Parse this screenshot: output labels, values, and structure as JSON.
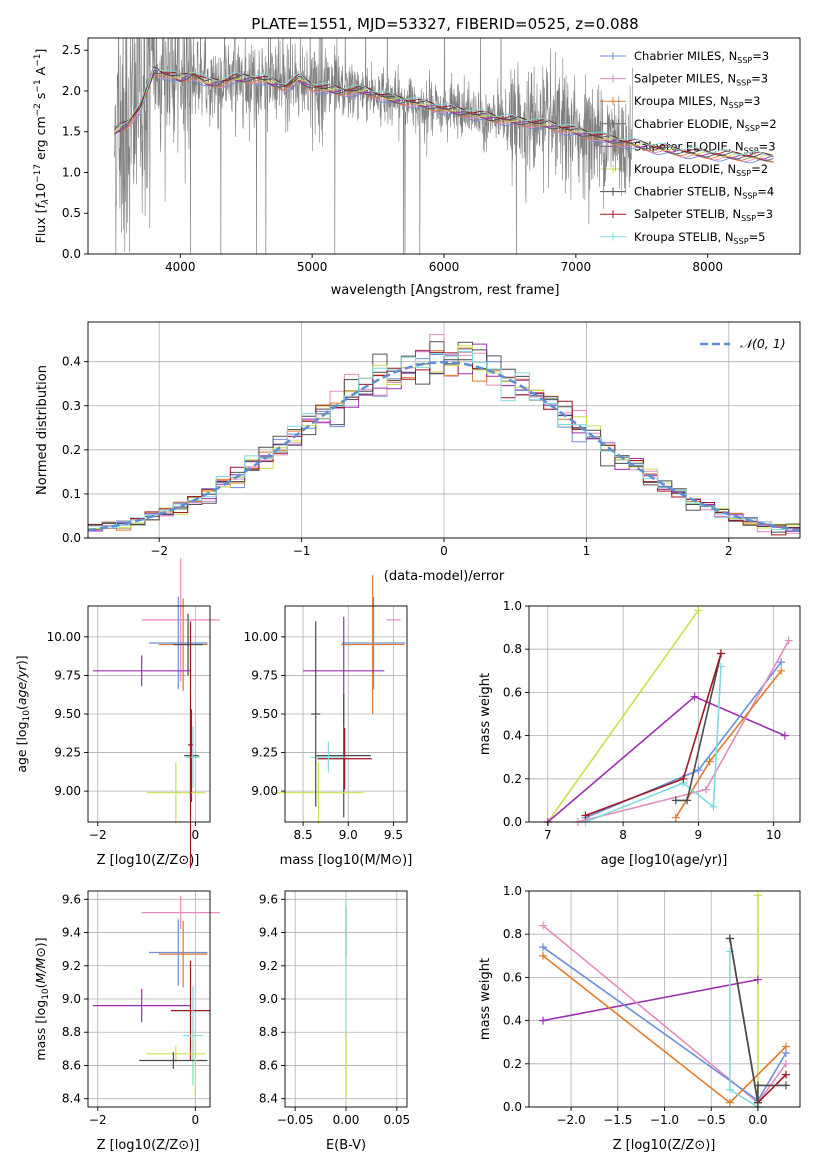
{
  "chart_data": [
    {
      "id": "spectrum",
      "type": "line",
      "title": "PLATE=1551, MJD=53327, FIBERID=0525, z=0.088",
      "xlabel": "wavelength [Angstrom, rest frame]",
      "ylabel": "Flux [f_λ 10^-17 erg cm^-2 s^-1 A^-1]",
      "xlim": [
        3300,
        8700
      ],
      "ylim": [
        0,
        2.65
      ],
      "xticks": [
        4000,
        5000,
        6000,
        7000,
        8000
      ],
      "yticks": [
        0.0,
        0.5,
        1.0,
        1.5,
        2.0,
        2.5
      ],
      "grid": false,
      "legend_position": "top-right",
      "data_range": [
        3500,
        7430
      ],
      "model_range": [
        3500,
        8500
      ],
      "continuum": [
        [
          3500,
          1.5
        ],
        [
          3600,
          1.6
        ],
        [
          3700,
          1.8
        ],
        [
          3800,
          2.25
        ],
        [
          3900,
          2.2
        ],
        [
          4000,
          2.15
        ],
        [
          4100,
          2.2
        ],
        [
          4200,
          2.1
        ],
        [
          4300,
          2.1
        ],
        [
          4400,
          2.15
        ],
        [
          4600,
          2.15
        ],
        [
          4800,
          2.05
        ],
        [
          4900,
          2.15
        ],
        [
          5000,
          2.05
        ],
        [
          5200,
          2.0
        ],
        [
          5400,
          2.0
        ],
        [
          5600,
          1.9
        ],
        [
          5800,
          1.85
        ],
        [
          6000,
          1.78
        ],
        [
          6200,
          1.72
        ],
        [
          6400,
          1.66
        ],
        [
          6600,
          1.62
        ],
        [
          6800,
          1.58
        ],
        [
          7000,
          1.5
        ],
        [
          7200,
          1.42
        ],
        [
          7400,
          1.36
        ],
        [
          7600,
          1.3
        ],
        [
          7800,
          1.25
        ],
        [
          8000,
          1.22
        ],
        [
          8200,
          1.2
        ],
        [
          8500,
          1.18
        ]
      ],
      "series": [
        {
          "name": "Chabrier MILES, N_SSP=3",
          "color": "#6a8fdb"
        },
        {
          "name": "Salpeter MILES, N_SSP=3",
          "color": "#e48bbf"
        },
        {
          "name": "Kroupa MILES, N_SSP=3",
          "color": "#e07b2b"
        },
        {
          "name": "Chabrier ELODIE, N_SSP=2",
          "color": "#555555"
        },
        {
          "name": "Salpeter ELODIE, N_SSP=3",
          "color": "#9c2fb0"
        },
        {
          "name": "Kroupa ELODIE, N_SSP=2",
          "color": "#c8e04a"
        },
        {
          "name": "Chabrier STELIB, N_SSP=4",
          "color": "#4a4a4a"
        },
        {
          "name": "Salpeter STELIB, N_SSP=3",
          "color": "#a01622"
        },
        {
          "name": "Kroupa STELIB, N_SSP=5",
          "color": "#7fdbe0"
        }
      ]
    },
    {
      "id": "residuals",
      "type": "line",
      "xlabel": "(data-model)/error",
      "ylabel": "Normed distribution",
      "xlim": [
        -2.5,
        2.5
      ],
      "ylim": [
        0,
        0.49
      ],
      "xticks": [
        -2,
        -1,
        0,
        1,
        2
      ],
      "yticks": [
        0.0,
        0.1,
        0.2,
        0.3,
        0.4
      ],
      "grid": true,
      "legend": "N(0,1)",
      "legend_position": "top-right"
    },
    {
      "id": "age_z",
      "type": "scatter",
      "xlabel": "Z [log10(Z/Z⊙)]",
      "ylabel": "age [log10(age/yr)]",
      "xlim": [
        -2.2,
        0.3
      ],
      "ylim": [
        8.8,
        10.2
      ],
      "xticks": [
        -2,
        0
      ],
      "yticks": [
        9.0,
        9.25,
        9.5,
        9.75,
        10.0
      ],
      "grid": true,
      "points": [
        {
          "x": -0.3,
          "y": 10.11,
          "xerr": 0.8,
          "yerr": 0.4,
          "color": "#e48bbf"
        },
        {
          "x": -0.35,
          "y": 9.96,
          "xerr": 0.6,
          "yerr": 0.3,
          "color": "#6a8fdb"
        },
        {
          "x": -0.25,
          "y": 9.95,
          "xerr": 0.5,
          "yerr": 0.3,
          "color": "#e07b2b"
        },
        {
          "x": -0.15,
          "y": 9.95,
          "xerr": 0.3,
          "yerr": 0.2,
          "color": "#4a4a4a"
        },
        {
          "x": -1.1,
          "y": 9.78,
          "xerr": 1.0,
          "yerr": 0.1,
          "color": "#9c2fb0"
        },
        {
          "x": -0.08,
          "y": 9.23,
          "xerr": 0.15,
          "yerr": 0.3,
          "color": "#4a4a4a"
        },
        {
          "x": -0.05,
          "y": 9.22,
          "xerr": 0.15,
          "yerr": 0.2,
          "color": "#7fdbe0"
        },
        {
          "x": -0.4,
          "y": 8.99,
          "xerr": 0.6,
          "yerr": 0.2,
          "color": "#c8e04a"
        },
        {
          "x": -0.1,
          "y": 9.3,
          "xerr": 0.05,
          "yerr": 0.8,
          "color": "#a01622"
        }
      ]
    },
    {
      "id": "age_mass",
      "type": "scatter",
      "xlabel": "mass [log10(M/M⊙)]",
      "xlim": [
        8.3,
        9.65
      ],
      "ylim": [
        8.8,
        10.2
      ],
      "xticks": [
        8.5,
        9.0,
        9.5
      ],
      "yticks": [
        9.0,
        9.25,
        9.5,
        9.75,
        10.0
      ],
      "grid": true,
      "points": [
        {
          "x": 9.5,
          "y": 10.11,
          "xerr": 0.08,
          "yerr": 0.0,
          "color": "#e48bbf"
        },
        {
          "x": 9.28,
          "y": 9.96,
          "xerr": 0.35,
          "yerr": 0.3,
          "color": "#6a8fdb"
        },
        {
          "x": 9.27,
          "y": 9.95,
          "xerr": 0.35,
          "yerr": 0.45,
          "color": "#e07b2b"
        },
        {
          "x": 8.95,
          "y": 9.78,
          "xerr": 0.45,
          "yerr": 0.35,
          "color": "#9c2fb0"
        },
        {
          "x": 8.95,
          "y": 9.23,
          "xerr": 0.3,
          "yerr": 0.4,
          "color": "#4a4a4a"
        },
        {
          "x": 8.96,
          "y": 9.21,
          "xerr": 0.3,
          "yerr": 0.2,
          "color": "#a01622"
        },
        {
          "x": 8.78,
          "y": 9.22,
          "xerr": 0.2,
          "yerr": 0.1,
          "color": "#7fdbe0"
        },
        {
          "x": 8.67,
          "y": 8.99,
          "xerr": 0.5,
          "yerr": 0.2,
          "color": "#c8e04a"
        },
        {
          "x": 8.64,
          "y": 9.5,
          "xerr": 0.05,
          "yerr": 0.6,
          "color": "#4a4a4a"
        }
      ]
    },
    {
      "id": "weight_age",
      "type": "line",
      "xlabel": "age [log10(age/yr)]",
      "ylabel": "mass weight",
      "xlim": [
        6.75,
        10.35
      ],
      "ylim": [
        0,
        1.0
      ],
      "xticks": [
        7,
        8,
        9,
        10
      ],
      "yticks": [
        0.0,
        0.2,
        0.4,
        0.6,
        0.8,
        1.0
      ],
      "grid": true,
      "series": [
        {
          "color": "#c8e04a",
          "points": [
            [
              7.0,
              0.0
            ],
            [
              9.0,
              0.98
            ]
          ]
        },
        {
          "color": "#9c2fb0",
          "points": [
            [
              7.0,
              0.0
            ],
            [
              8.95,
              0.58
            ],
            [
              10.15,
              0.4
            ]
          ]
        },
        {
          "color": "#6a8fdb",
          "points": [
            [
              7.5,
              0.02
            ],
            [
              9.0,
              0.24
            ],
            [
              10.1,
              0.74
            ]
          ]
        },
        {
          "color": "#e48bbf",
          "points": [
            [
              7.4,
              0.0
            ],
            [
              9.1,
              0.15
            ],
            [
              10.2,
              0.84
            ]
          ]
        },
        {
          "color": "#e07b2b",
          "points": [
            [
              8.7,
              0.02
            ],
            [
              9.15,
              0.28
            ],
            [
              10.1,
              0.7
            ]
          ]
        },
        {
          "color": "#7fdbe0",
          "points": [
            [
              7.5,
              0.0
            ],
            [
              8.8,
              0.18
            ],
            [
              9.2,
              0.07
            ],
            [
              9.3,
              0.72
            ]
          ]
        },
        {
          "color": "#4a4a4a",
          "points": [
            [
              8.7,
              0.1
            ],
            [
              8.85,
              0.1
            ],
            [
              9.3,
              0.78
            ]
          ]
        },
        {
          "color": "#a01622",
          "points": [
            [
              7.5,
              0.03
            ],
            [
              8.8,
              0.2
            ],
            [
              9.3,
              0.78
            ]
          ]
        }
      ]
    },
    {
      "id": "mass_z",
      "type": "scatter",
      "xlabel": "Z [log10(Z/Z⊙)]",
      "ylabel": "mass [log10(M/M⊙)]",
      "xlim": [
        -2.2,
        0.3
      ],
      "ylim": [
        8.35,
        9.65
      ],
      "xticks": [
        -2,
        0
      ],
      "yticks": [
        8.4,
        8.6,
        8.8,
        9.0,
        9.2,
        9.4,
        9.6
      ],
      "grid": true,
      "points": [
        {
          "x": -0.3,
          "y": 9.52,
          "xerr": 0.8,
          "yerr": 0.1,
          "color": "#e48bbf"
        },
        {
          "x": -0.35,
          "y": 9.28,
          "xerr": 0.6,
          "yerr": 0.2,
          "color": "#6a8fdb"
        },
        {
          "x": -0.25,
          "y": 9.27,
          "xerr": 0.5,
          "yerr": 0.2,
          "color": "#e07b2b"
        },
        {
          "x": -1.1,
          "y": 8.96,
          "xerr": 1.0,
          "yerr": 0.1,
          "color": "#9c2fb0"
        },
        {
          "x": -0.1,
          "y": 8.93,
          "xerr": 0.4,
          "yerr": 0.3,
          "color": "#a01622"
        },
        {
          "x": -0.05,
          "y": 8.78,
          "xerr": 0.2,
          "yerr": 0.3,
          "color": "#7fdbe0"
        },
        {
          "x": -0.4,
          "y": 8.67,
          "xerr": 0.6,
          "yerr": 0.05,
          "color": "#c8e04a"
        },
        {
          "x": -0.45,
          "y": 8.63,
          "xerr": 0.7,
          "yerr": 0.05,
          "color": "#4a4a4a"
        },
        {
          "x": 0.0,
          "y": 8.6,
          "xerr": 0.02,
          "yerr": 0.2,
          "color": "#c8e04a"
        }
      ]
    },
    {
      "id": "mass_ebv",
      "type": "scatter",
      "xlabel": "E(B-V)",
      "xlim": [
        -0.06,
        0.06
      ],
      "ylim": [
        8.35,
        9.65
      ],
      "xticks": [
        -0.05,
        0.0,
        0.05
      ],
      "yticks": [
        8.4,
        8.6,
        8.8,
        9.0,
        9.2,
        9.4,
        9.6
      ],
      "grid": true,
      "points": [
        {
          "x": 0.0,
          "y": 9.4,
          "xerr": 0.0,
          "yerr": 0.15,
          "color": "#a01622"
        },
        {
          "x": 0.0,
          "y": 9.0,
          "xerr": 0.0,
          "yerr": 0.6,
          "color": "#7fdbe0"
        },
        {
          "x": 0.0,
          "y": 8.6,
          "xerr": 0.0,
          "yerr": 0.2,
          "color": "#c8e04a"
        }
      ]
    },
    {
      "id": "weight_z",
      "type": "line",
      "xlabel": "Z [log10(Z/Z⊙)]",
      "ylabel": "mass weight",
      "xlim": [
        -2.45,
        0.45
      ],
      "ylim": [
        0,
        1.0
      ],
      "xticks": [
        -2.0,
        -1.5,
        -1.0,
        -0.5,
        0.0
      ],
      "yticks": [
        0.0,
        0.2,
        0.4,
        0.6,
        0.8,
        1.0
      ],
      "grid": true,
      "series": [
        {
          "color": "#c8e04a",
          "points": [
            [
              0.0,
              0.0
            ],
            [
              0.0,
              0.98
            ]
          ]
        },
        {
          "color": "#9c2fb0",
          "points": [
            [
              -2.3,
              0.4
            ],
            [
              0.0,
              0.59
            ]
          ]
        },
        {
          "color": "#e48bbf",
          "points": [
            [
              -2.3,
              0.84
            ],
            [
              0.0,
              0.02
            ],
            [
              0.3,
              0.2
            ]
          ]
        },
        {
          "color": "#6a8fdb",
          "points": [
            [
              -2.3,
              0.74
            ],
            [
              0.0,
              0.03
            ],
            [
              0.3,
              0.25
            ]
          ]
        },
        {
          "color": "#e07b2b",
          "points": [
            [
              -2.3,
              0.7
            ],
            [
              -0.3,
              0.02
            ],
            [
              0.3,
              0.28
            ]
          ]
        },
        {
          "color": "#7fdbe0",
          "points": [
            [
              -0.3,
              0.72
            ],
            [
              -0.3,
              0.08
            ],
            [
              0.0,
              0.0
            ]
          ]
        },
        {
          "color": "#a01622",
          "points": [
            [
              -0.3,
              0.78
            ],
            [
              0.0,
              0.02
            ],
            [
              0.3,
              0.15
            ]
          ]
        },
        {
          "color": "#4a4a4a",
          "points": [
            [
              -0.3,
              0.78
            ],
            [
              0.0,
              0.02
            ],
            [
              0.0,
              0.1
            ],
            [
              0.3,
              0.1
            ]
          ]
        }
      ]
    }
  ]
}
